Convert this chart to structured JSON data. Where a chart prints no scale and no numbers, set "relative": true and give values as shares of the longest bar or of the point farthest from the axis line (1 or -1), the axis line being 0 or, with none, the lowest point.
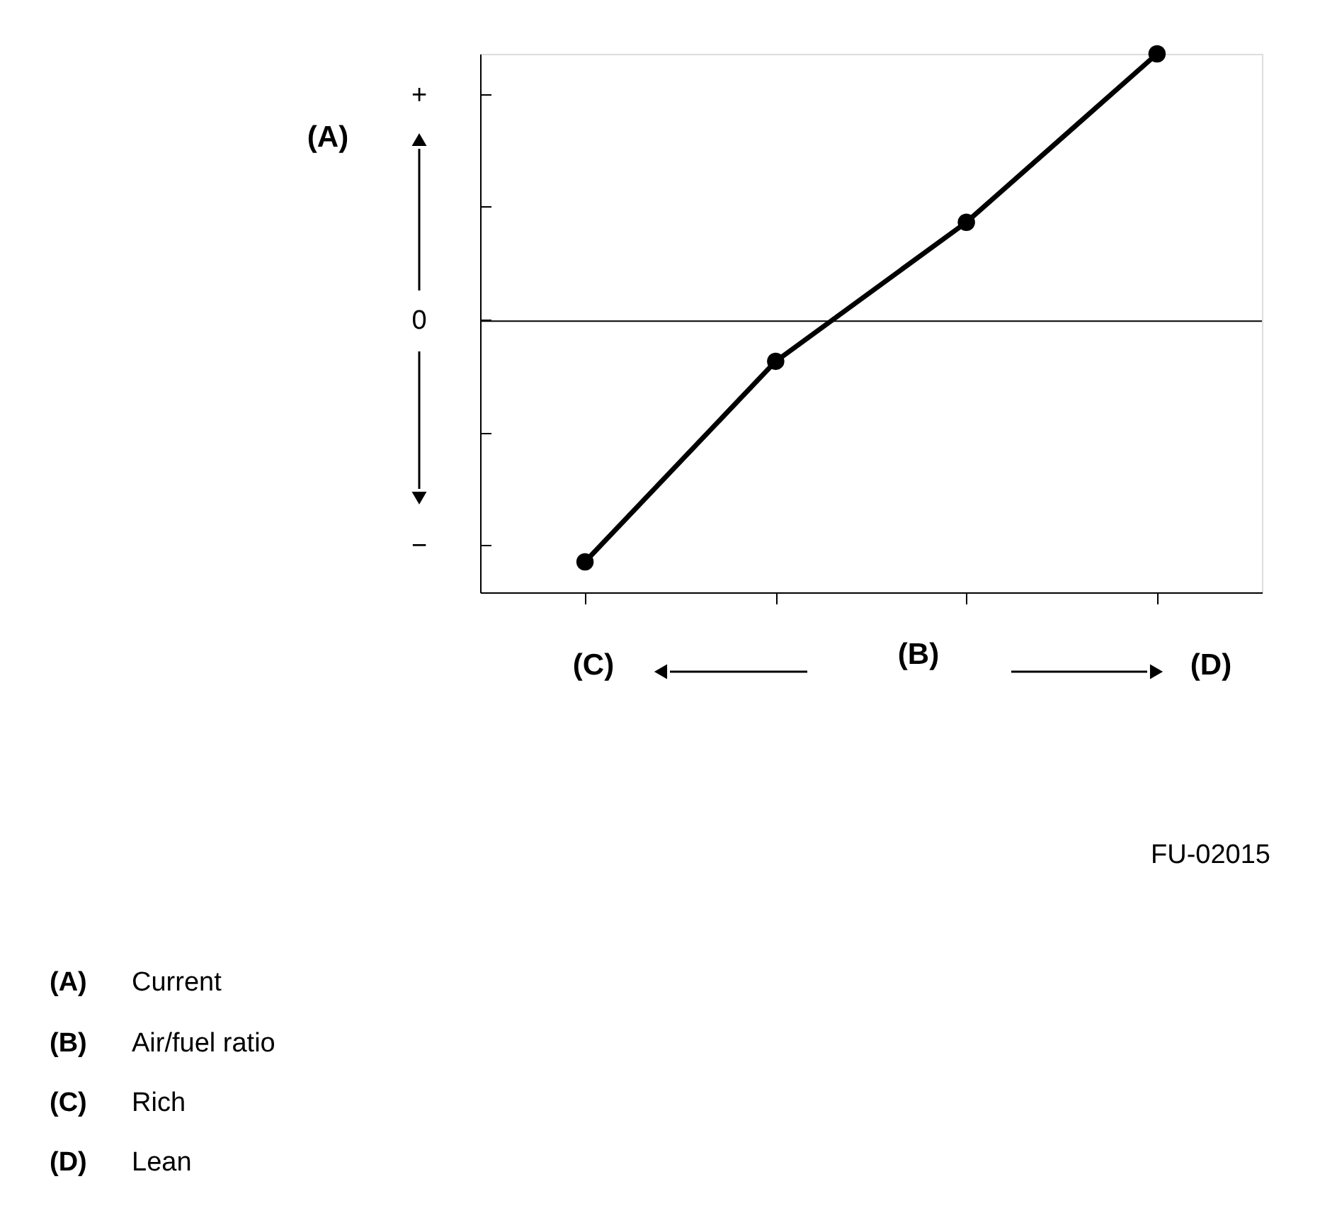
{
  "chart_data": {
    "type": "line",
    "relative": true,
    "xlabel": "(B)",
    "ylabel": "(A)",
    "categories": [
      null,
      null,
      null,
      null
    ],
    "series": [
      {
        "color": "#000000",
        "values": [
          -0.9,
          -0.15,
          0.37,
          1.0
        ]
      }
    ],
    "marker": "circle",
    "line_style": "solid",
    "grid": false,
    "legend": false,
    "annotations": [
      "+",
      "0",
      "−",
      "(C)",
      "(D)",
      "FU-02015",
      "(A) Current",
      "(B) Air/fuel ratio",
      "(C) Rich",
      "(D) Lean"
    ]
  }
}
